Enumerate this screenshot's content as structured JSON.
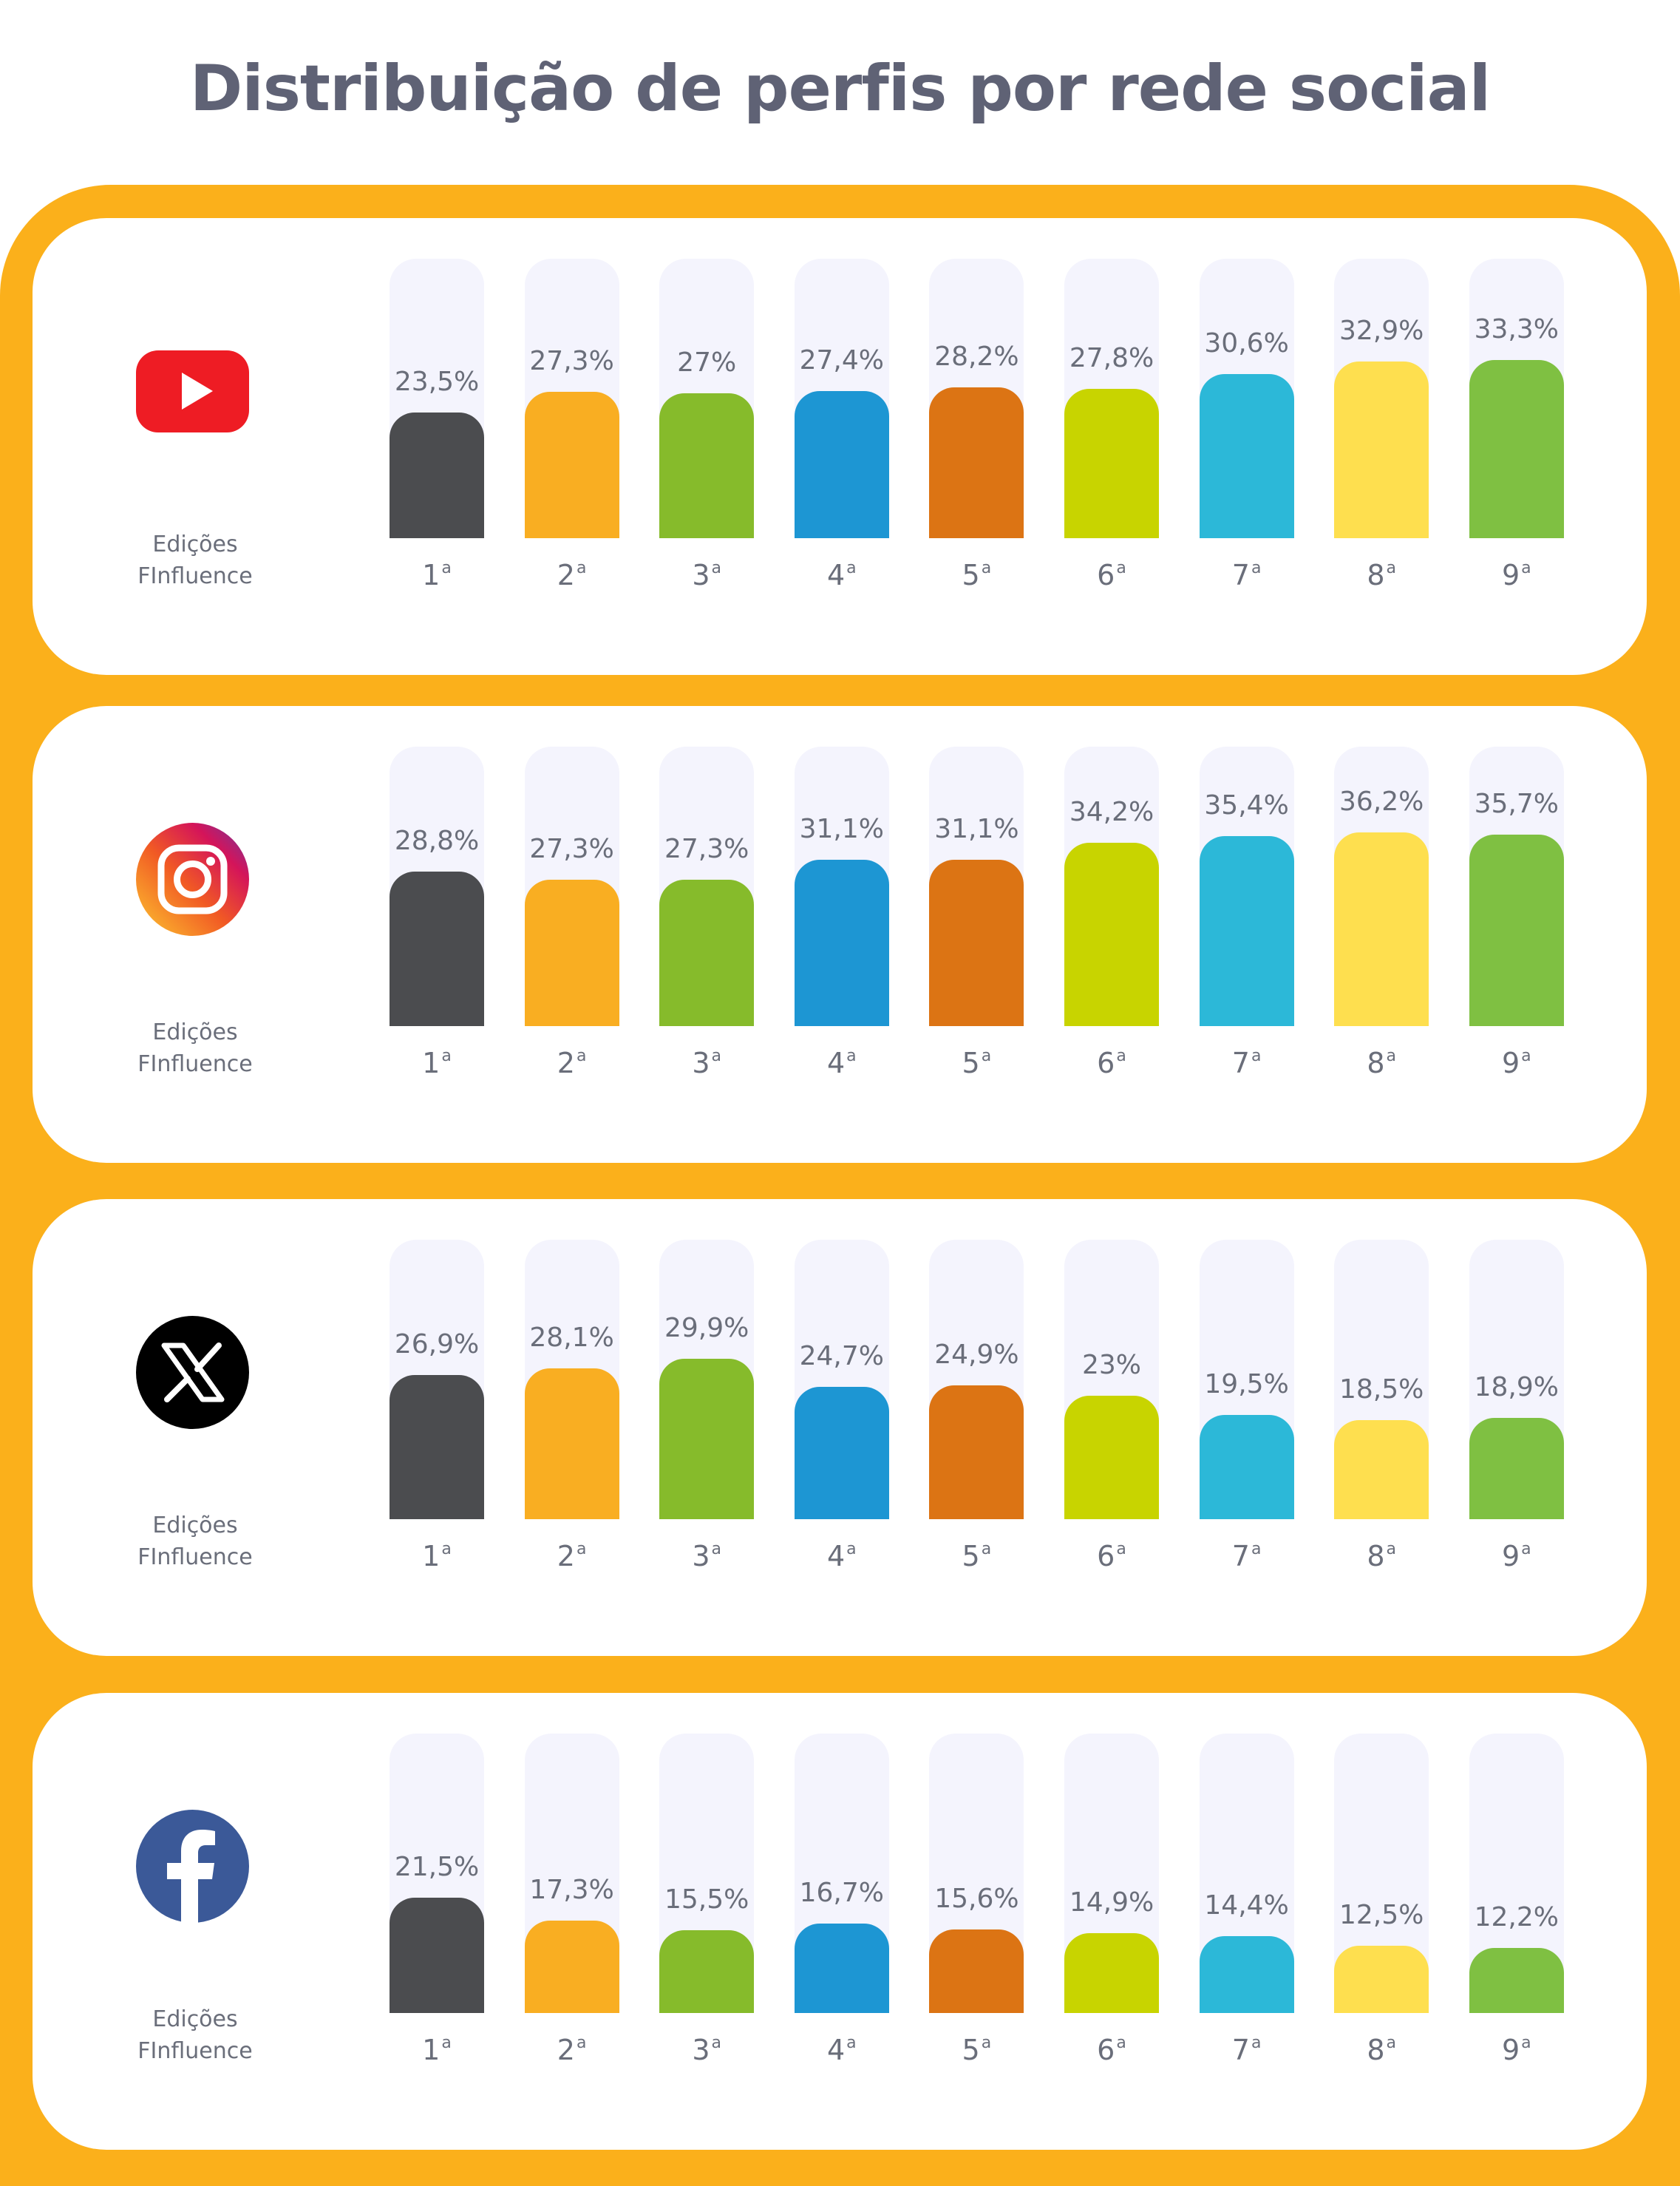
{
  "title": "Distribuição de perfis por rede social",
  "editions_label_line1": "Edições",
  "editions_label_line2": "FInfluence",
  "ordinal_suffix": "a",
  "colors": [
    "#4b4c4f",
    "#f9ae22",
    "#86bb2b",
    "#1d96d3",
    "#dc7414",
    "#c8d400",
    "#2cb8d8",
    "#fedf4f",
    "#7fc042"
  ],
  "chart_data": [
    {
      "type": "bar",
      "network": "youtube-icon",
      "categories": [
        "1",
        "2",
        "3",
        "4",
        "5",
        "6",
        "7",
        "8",
        "9"
      ],
      "values": [
        23.5,
        27.3,
        27,
        27.4,
        28.2,
        27.8,
        30.6,
        32.9,
        33.3
      ],
      "labels": [
        "23,5%",
        "27,3%",
        "27%",
        "27,4%",
        "28,2%",
        "27,8%",
        "30,6%",
        "32,9%",
        "33,3%"
      ],
      "ylim": [
        0,
        100
      ]
    },
    {
      "type": "bar",
      "network": "instagram-icon",
      "categories": [
        "1",
        "2",
        "3",
        "4",
        "5",
        "6",
        "7",
        "8",
        "9"
      ],
      "values": [
        28.8,
        27.3,
        27.3,
        31.1,
        31.1,
        34.2,
        35.4,
        36.2,
        35.7
      ],
      "labels": [
        "28,8%",
        "27,3%",
        "27,3%",
        "31,1%",
        "31,1%",
        "34,2%",
        "35,4%",
        "36,2%",
        "35,7%"
      ],
      "ylim": [
        0,
        100
      ]
    },
    {
      "type": "bar",
      "network": "x-icon",
      "categories": [
        "1",
        "2",
        "3",
        "4",
        "5",
        "6",
        "7",
        "8",
        "9"
      ],
      "values": [
        26.9,
        28.1,
        29.9,
        24.7,
        24.9,
        23,
        19.5,
        18.5,
        18.9
      ],
      "labels": [
        "26,9%",
        "28,1%",
        "29,9%",
        "24,7%",
        "24,9%",
        "23%",
        "19,5%",
        "18,5%",
        "18,9%"
      ],
      "ylim": [
        0,
        100
      ]
    },
    {
      "type": "bar",
      "network": "facebook-icon",
      "categories": [
        "1",
        "2",
        "3",
        "4",
        "5",
        "6",
        "7",
        "8",
        "9"
      ],
      "values": [
        21.5,
        17.3,
        15.5,
        16.7,
        15.6,
        14.9,
        14.4,
        12.5,
        12.2
      ],
      "labels": [
        "21,5%",
        "17,3%",
        "15,5%",
        "16,7%",
        "15,6%",
        "14,9%",
        "14,4%",
        "12,5%",
        "12,2%"
      ],
      "ylim": [
        0,
        100
      ]
    }
  ]
}
